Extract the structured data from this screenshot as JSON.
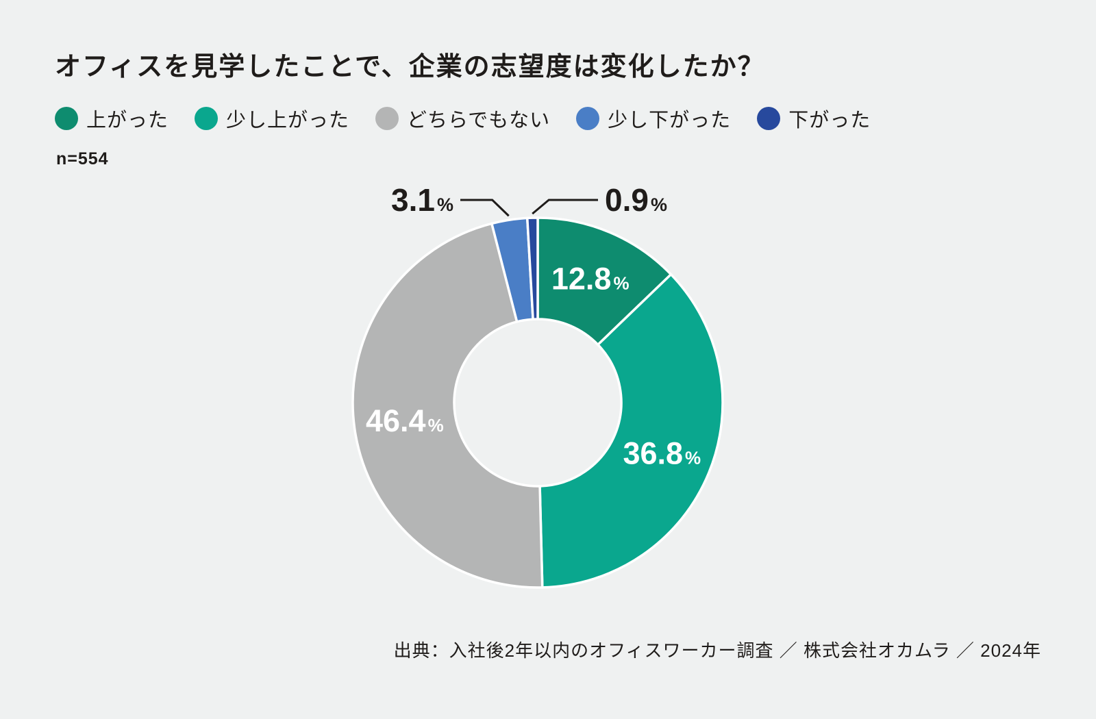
{
  "chart_data": {
    "type": "pie",
    "subtype": "donut",
    "title": "オフィスを見学したことで、企業の志望度は変化したか？",
    "categories": [
      "上がった",
      "少し上がった",
      "どちらでもない",
      "少し下がった",
      "下がった"
    ],
    "values": [
      12.8,
      36.8,
      46.4,
      3.1,
      0.9
    ],
    "unit": "%",
    "colors": [
      "#0E8C6F",
      "#0AA78E",
      "#B4B5B5",
      "#4A7EC6",
      "#27499D"
    ],
    "label_placement": [
      "inside",
      "inside",
      "inside",
      "callout-left",
      "callout-right"
    ],
    "start_angle_deg": 0,
    "direction": "clockwise",
    "legend_position": "top-left",
    "n": 554,
    "n_label": "n=554"
  },
  "source": "出典：入社後2年以内のオフィスワーカー調査 ／ 株式会社オカムラ ／ 2024年",
  "styles": {
    "background": "#EFF1F1",
    "text_color": "#1F1C1A",
    "slice_separator": "#FFFFFF",
    "inside_label_color": "#FFFFFF"
  }
}
